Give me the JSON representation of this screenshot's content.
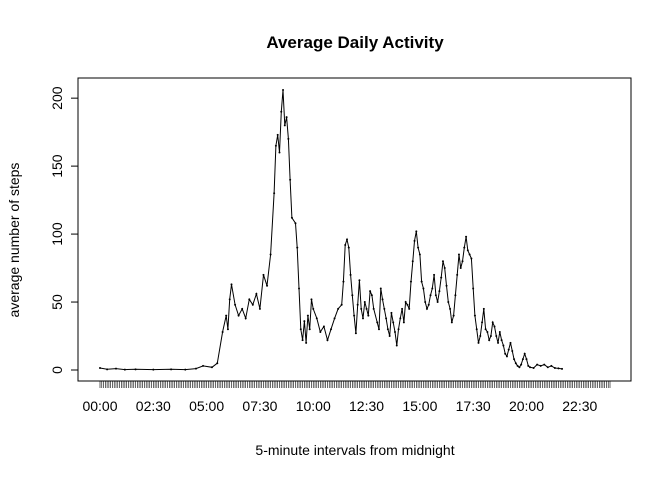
{
  "chart_data": {
    "type": "line",
    "title": "Average Daily Activity",
    "xlabel": "5-minute intervals from midnight",
    "ylabel": "average number of steps",
    "xlim": [
      0,
      287
    ],
    "ylim": [
      0,
      206
    ],
    "y_ticks": [
      0,
      50,
      100,
      150,
      200
    ],
    "x_tick_labels": [
      {
        "index": 0,
        "label": "00:00"
      },
      {
        "index": 30,
        "label": "02:30"
      },
      {
        "index": 60,
        "label": "05:00"
      },
      {
        "index": 90,
        "label": "07:30"
      },
      {
        "index": 120,
        "label": "10:00"
      },
      {
        "index": 150,
        "label": "12:30"
      },
      {
        "index": 180,
        "label": "15:00"
      },
      {
        "index": 210,
        "label": "17:30"
      },
      {
        "index": 240,
        "label": "20:00"
      },
      {
        "index": 270,
        "label": "22:30"
      }
    ],
    "interval_count": 288,
    "series": [
      {
        "color": "#000000",
        "anchors": [
          [
            0,
            1.5
          ],
          [
            4,
            0.5
          ],
          [
            9,
            1
          ],
          [
            14,
            0.3
          ],
          [
            20,
            0.5
          ],
          [
            30,
            0.3
          ],
          [
            40,
            0.5
          ],
          [
            48,
            0.3
          ],
          [
            54,
            1
          ],
          [
            58,
            3
          ],
          [
            63,
            2
          ],
          [
            66,
            5
          ],
          [
            69,
            28
          ],
          [
            71,
            40
          ],
          [
            72,
            30
          ],
          [
            73,
            52
          ],
          [
            74,
            63
          ],
          [
            76,
            48
          ],
          [
            78,
            40
          ],
          [
            80,
            45
          ],
          [
            82,
            38
          ],
          [
            84,
            52
          ],
          [
            86,
            48
          ],
          [
            88,
            56
          ],
          [
            90,
            45
          ],
          [
            92,
            70
          ],
          [
            94,
            62
          ],
          [
            96,
            85
          ],
          [
            98,
            130
          ],
          [
            99,
            165
          ],
          [
            100,
            173
          ],
          [
            101,
            160
          ],
          [
            102,
            190
          ],
          [
            103,
            206
          ],
          [
            104,
            180
          ],
          [
            105,
            186
          ],
          [
            106,
            170
          ],
          [
            107,
            140
          ],
          [
            108,
            112
          ],
          [
            110,
            108
          ],
          [
            111,
            90
          ],
          [
            112,
            60
          ],
          [
            113,
            30
          ],
          [
            114,
            22
          ],
          [
            115,
            36
          ],
          [
            116,
            20
          ],
          [
            117,
            40
          ],
          [
            118,
            30
          ],
          [
            119,
            52
          ],
          [
            120,
            45
          ],
          [
            122,
            38
          ],
          [
            124,
            28
          ],
          [
            126,
            32
          ],
          [
            128,
            22
          ],
          [
            130,
            30
          ],
          [
            132,
            38
          ],
          [
            134,
            45
          ],
          [
            136,
            48
          ],
          [
            137,
            65
          ],
          [
            138,
            92
          ],
          [
            139,
            96
          ],
          [
            140,
            90
          ],
          [
            141,
            70
          ],
          [
            142,
            55
          ],
          [
            143,
            40
          ],
          [
            144,
            27
          ],
          [
            145,
            48
          ],
          [
            146,
            66
          ],
          [
            147,
            45
          ],
          [
            148,
            38
          ],
          [
            149,
            50
          ],
          [
            150,
            45
          ],
          [
            151,
            40
          ],
          [
            152,
            58
          ],
          [
            153,
            55
          ],
          [
            154,
            45
          ],
          [
            156,
            35
          ],
          [
            157,
            30
          ],
          [
            158,
            60
          ],
          [
            159,
            52
          ],
          [
            160,
            45
          ],
          [
            161,
            38
          ],
          [
            162,
            30
          ],
          [
            163,
            25
          ],
          [
            164,
            42
          ],
          [
            165,
            35
          ],
          [
            166,
            28
          ],
          [
            167,
            18
          ],
          [
            168,
            30
          ],
          [
            169,
            38
          ],
          [
            170,
            45
          ],
          [
            171,
            35
          ],
          [
            172,
            50
          ],
          [
            173,
            48
          ],
          [
            174,
            45
          ],
          [
            175,
            65
          ],
          [
            176,
            80
          ],
          [
            177,
            95
          ],
          [
            178,
            102
          ],
          [
            179,
            90
          ],
          [
            180,
            85
          ],
          [
            181,
            65
          ],
          [
            182,
            60
          ],
          [
            183,
            50
          ],
          [
            184,
            45
          ],
          [
            185,
            48
          ],
          [
            186,
            55
          ],
          [
            187,
            60
          ],
          [
            188,
            70
          ],
          [
            189,
            55
          ],
          [
            190,
            50
          ],
          [
            191,
            58
          ],
          [
            192,
            68
          ],
          [
            193,
            80
          ],
          [
            194,
            75
          ],
          [
            195,
            62
          ],
          [
            196,
            50
          ],
          [
            197,
            45
          ],
          [
            198,
            35
          ],
          [
            199,
            40
          ],
          [
            200,
            55
          ],
          [
            201,
            70
          ],
          [
            202,
            85
          ],
          [
            203,
            75
          ],
          [
            204,
            80
          ],
          [
            205,
            90
          ],
          [
            206,
            98
          ],
          [
            207,
            88
          ],
          [
            208,
            85
          ],
          [
            209,
            82
          ],
          [
            210,
            60
          ],
          [
            211,
            40
          ],
          [
            212,
            30
          ],
          [
            213,
            20
          ],
          [
            214,
            25
          ],
          [
            215,
            35
          ],
          [
            216,
            45
          ],
          [
            217,
            30
          ],
          [
            218,
            28
          ],
          [
            219,
            22
          ],
          [
            220,
            25
          ],
          [
            221,
            35
          ],
          [
            222,
            32
          ],
          [
            223,
            25
          ],
          [
            224,
            20
          ],
          [
            225,
            28
          ],
          [
            226,
            22
          ],
          [
            227,
            18
          ],
          [
            228,
            12
          ],
          [
            229,
            10
          ],
          [
            230,
            15
          ],
          [
            231,
            20
          ],
          [
            232,
            14
          ],
          [
            233,
            8
          ],
          [
            234,
            5
          ],
          [
            235,
            3
          ],
          [
            236,
            2
          ],
          [
            237,
            4
          ],
          [
            238,
            8
          ],
          [
            239,
            12
          ],
          [
            240,
            8
          ],
          [
            241,
            3
          ],
          [
            242,
            2
          ],
          [
            244,
            1.5
          ],
          [
            246,
            4
          ],
          [
            248,
            3
          ],
          [
            250,
            4
          ],
          [
            252,
            2
          ],
          [
            254,
            3
          ],
          [
            256,
            1.5
          ],
          [
            258,
            1.2
          ],
          [
            260,
            0.8
          ]
        ]
      }
    ]
  }
}
